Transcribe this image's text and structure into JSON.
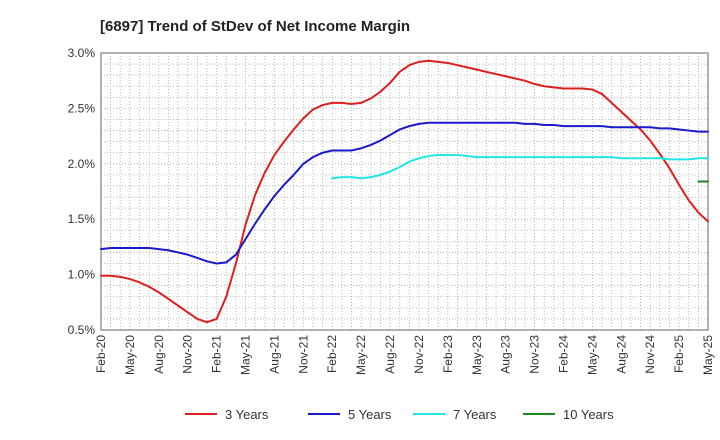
{
  "chart_data": {
    "type": "line",
    "title": "[6897]  Trend of StDev of Net Income Margin",
    "xlabel": "",
    "ylabel": "",
    "ylim": [
      0.5,
      3.0
    ],
    "yticks": [
      "0.5%",
      "1.0%",
      "1.5%",
      "2.0%",
      "2.5%",
      "3.0%"
    ],
    "ytick_values": [
      0.5,
      1.0,
      1.5,
      2.0,
      2.5,
      3.0
    ],
    "xticks": [
      "Feb-20",
      "May-20",
      "Aug-20",
      "Nov-20",
      "Feb-21",
      "May-21",
      "Aug-21",
      "Nov-21",
      "Feb-22",
      "May-22",
      "Aug-22",
      "Nov-22",
      "Feb-23",
      "May-23",
      "Aug-23",
      "Nov-23",
      "Feb-24",
      "May-24",
      "Aug-24",
      "Nov-24",
      "Feb-25",
      "May-25"
    ],
    "grid": "dotted",
    "legend_position": "bottom",
    "series": [
      {
        "name": "3 Years",
        "color": "#dd1f1f",
        "start_index": 0,
        "values": [
          0.99,
          0.99,
          0.98,
          0.96,
          0.93,
          0.89,
          0.84,
          0.78,
          0.72,
          0.66,
          0.6,
          0.57,
          0.6,
          0.8,
          1.1,
          1.45,
          1.72,
          1.92,
          2.08,
          2.2,
          2.31,
          2.41,
          2.49,
          2.53,
          2.55,
          2.55,
          2.54,
          2.55,
          2.59,
          2.65,
          2.73,
          2.83,
          2.89,
          2.92,
          2.93,
          2.92,
          2.91,
          2.89,
          2.87,
          2.85,
          2.83,
          2.81,
          2.79,
          2.77,
          2.75,
          2.72,
          2.7,
          2.69,
          2.68,
          2.68,
          2.68,
          2.67,
          2.63,
          2.55,
          2.47,
          2.39,
          2.31,
          2.21,
          2.09,
          1.96,
          1.81,
          1.67,
          1.56,
          1.48
        ]
      },
      {
        "name": "5 Years",
        "color": "#1a1acc",
        "start_index": 0,
        "values": [
          1.23,
          1.24,
          1.24,
          1.24,
          1.24,
          1.24,
          1.23,
          1.22,
          1.2,
          1.18,
          1.15,
          1.12,
          1.1,
          1.11,
          1.18,
          1.32,
          1.46,
          1.59,
          1.71,
          1.81,
          1.9,
          2.0,
          2.06,
          2.1,
          2.12,
          2.12,
          2.12,
          2.14,
          2.17,
          2.21,
          2.26,
          2.31,
          2.34,
          2.36,
          2.37,
          2.37,
          2.37,
          2.37,
          2.37,
          2.37,
          2.37,
          2.37,
          2.37,
          2.37,
          2.36,
          2.36,
          2.35,
          2.35,
          2.34,
          2.34,
          2.34,
          2.34,
          2.34,
          2.33,
          2.33,
          2.33,
          2.33,
          2.33,
          2.32,
          2.32,
          2.31,
          2.3,
          2.29,
          2.29
        ]
      },
      {
        "name": "7 Years",
        "color": "#22e6e6",
        "start_index": 24,
        "values": [
          1.87,
          1.88,
          1.88,
          1.87,
          1.88,
          1.9,
          1.93,
          1.97,
          2.02,
          2.05,
          2.07,
          2.08,
          2.08,
          2.08,
          2.07,
          2.06,
          2.06,
          2.06,
          2.06,
          2.06,
          2.06,
          2.06,
          2.06,
          2.06,
          2.06,
          2.06,
          2.06,
          2.06,
          2.06,
          2.06,
          2.05,
          2.05,
          2.05,
          2.05,
          2.05,
          2.04,
          2.04,
          2.04,
          2.05,
          2.05
        ]
      },
      {
        "name": "10 Years",
        "color": "#1a8a1a",
        "start_index": 62,
        "values": [
          1.84,
          1.84
        ]
      }
    ]
  }
}
